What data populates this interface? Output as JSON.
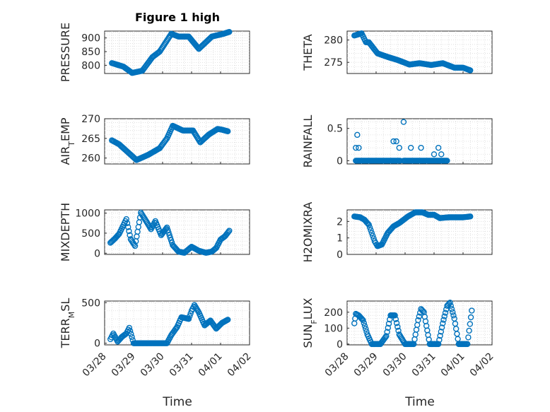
{
  "figure": {
    "title": "Figure 1 high",
    "marker_color": "#0072BD",
    "x_label": "Time",
    "x_ticks": [
      "03/28",
      "03/29",
      "03/30",
      "03/31",
      "04/01",
      "04/02"
    ]
  },
  "chart_data": [
    {
      "type": "scatter",
      "ylabel": "PRESSURE",
      "ylim": [
        770,
        925
      ],
      "yticks": [
        "800",
        "850",
        "900"
      ],
      "x": [
        0.25,
        0.65,
        0.95,
        1.3,
        1.65,
        1.9,
        2.3,
        2.55,
        2.9,
        3.25,
        3.7,
        4.1,
        4.3
      ],
      "y": [
        808,
        795,
        772,
        780,
        830,
        850,
        915,
        905,
        905,
        860,
        905,
        915,
        922
      ]
    },
    {
      "type": "scatter",
      "ylabel": "THETA",
      "ylim": [
        272.5,
        282
      ],
      "yticks": [
        "275",
        "280"
      ],
      "x": [
        0.25,
        0.5,
        0.65,
        0.75,
        1.05,
        1.4,
        1.75,
        2.15,
        2.5,
        2.9,
        3.3,
        3.7,
        4.0,
        4.25
      ],
      "y": [
        281,
        281.5,
        279.5,
        279.5,
        277,
        276.2,
        275.5,
        274.5,
        274.8,
        274.4,
        274.8,
        273.8,
        273.8,
        273.2
      ]
    },
    {
      "type": "scatter",
      "ylabel": "AIR_TEMP",
      "ylim": [
        258.5,
        270
      ],
      "yticks": [
        "260",
        "265",
        "270"
      ],
      "x": [
        0.25,
        0.5,
        0.8,
        1.1,
        1.5,
        1.9,
        2.15,
        2.35,
        2.7,
        3.05,
        3.3,
        3.6,
        3.9,
        4.05,
        4.25
      ],
      "y": [
        264.5,
        263.5,
        261.5,
        259.5,
        260.8,
        262.5,
        265,
        268.2,
        267,
        267,
        264,
        266,
        267.4,
        267.2,
        266.8
      ]
    },
    {
      "type": "scatter",
      "ylabel": "RAINFALL",
      "ylim": [
        -0.05,
        0.65
      ],
      "yticks": [
        "0",
        "0.5"
      ],
      "x": [
        0.3,
        0.35,
        0.4,
        1.6,
        1.7,
        1.8,
        1.95,
        2.2,
        2.55,
        3.0,
        3.15,
        3.25
      ],
      "y": [
        0.2,
        0.4,
        0.2,
        0.3,
        0.3,
        0.2,
        0.6,
        0.2,
        0.2,
        0.1,
        0.2,
        0.1
      ],
      "baseline": 0,
      "baseline_spans": [
        [
          0.3,
          1.85
        ],
        [
          1.95,
          3.45
        ]
      ]
    },
    {
      "type": "scatter",
      "ylabel": "MIXDEPTH",
      "ylim": [
        -30,
        1080
      ],
      "yticks": [
        "0",
        "500",
        "1000"
      ],
      "x": [
        0.2,
        0.35,
        0.5,
        0.65,
        0.75,
        0.9,
        1.05,
        1.25,
        1.45,
        1.6,
        1.75,
        1.95,
        2.15,
        2.35,
        2.55,
        2.75,
        3.0,
        3.25,
        3.5,
        3.7,
        3.85,
        4.0,
        4.15,
        4.3
      ],
      "y": [
        260,
        360,
        480,
        700,
        850,
        350,
        180,
        1010,
        780,
        600,
        800,
        450,
        640,
        200,
        40,
        10,
        160,
        60,
        10,
        40,
        130,
        340,
        420,
        560
      ]
    },
    {
      "type": "scatter",
      "ylabel": "H2OMIXRA",
      "ylim": [
        0,
        2.7
      ],
      "yticks": [
        "0",
        "1",
        "2"
      ],
      "x": [
        0.25,
        0.45,
        0.6,
        0.75,
        0.85,
        0.95,
        1.05,
        1.2,
        1.4,
        1.6,
        1.8,
        1.95,
        2.1,
        2.35,
        2.6,
        2.8,
        3.0,
        3.2,
        3.5,
        3.8,
        4.0,
        4.25
      ],
      "y": [
        2.3,
        2.25,
        2.1,
        1.8,
        1.3,
        0.8,
        0.5,
        0.6,
        1.3,
        1.7,
        1.9,
        2.1,
        2.3,
        2.55,
        2.55,
        2.4,
        2.4,
        2.2,
        2.25,
        2.25,
        2.25,
        2.3
      ]
    },
    {
      "type": "scatter",
      "ylabel": "TERR_MSL",
      "ylim": [
        -20,
        520
      ],
      "yticks": [
        "0",
        "500"
      ],
      "x": [
        0.2,
        0.3,
        0.45,
        0.6,
        0.75,
        0.85,
        1.0,
        1.3,
        1.6,
        1.9,
        2.15,
        2.3,
        2.5,
        2.65,
        2.9,
        3.0,
        3.1,
        3.25,
        3.45,
        3.65,
        3.85,
        4.05,
        4.25
      ],
      "y": [
        50,
        120,
        20,
        80,
        120,
        190,
        0,
        0,
        0,
        0,
        0,
        100,
        200,
        320,
        300,
        400,
        470,
        380,
        220,
        280,
        180,
        250,
        290
      ]
    },
    {
      "type": "scatter",
      "ylabel": "SUN_FLUX",
      "ylim": [
        -5,
        270
      ],
      "yticks": [
        "0",
        "100",
        "200"
      ],
      "x": [
        0.25,
        0.3,
        0.4,
        0.55,
        0.7,
        0.85,
        1.0,
        1.15,
        1.35,
        1.5,
        1.65,
        1.8,
        2.0,
        2.15,
        2.3,
        2.45,
        2.55,
        2.65,
        2.85,
        3.0,
        3.15,
        3.3,
        3.45,
        3.55,
        3.7,
        3.85,
        4.05,
        4.15,
        4.3
      ],
      "y": [
        130,
        190,
        180,
        150,
        60,
        0,
        0,
        0,
        50,
        180,
        180,
        60,
        0,
        0,
        0,
        150,
        220,
        200,
        0,
        0,
        0,
        130,
        240,
        260,
        160,
        0,
        0,
        0,
        210
      ]
    }
  ]
}
